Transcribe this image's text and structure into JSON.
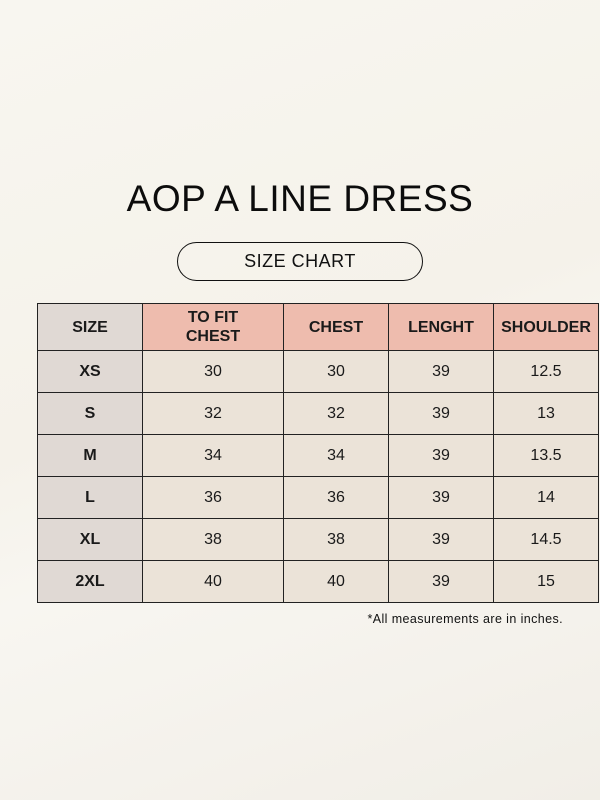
{
  "title": "AOP A LINE DRESS",
  "subtitle": "SIZE CHART",
  "colors": {
    "background": "#f7f5ee",
    "header": "#eebcae",
    "size_column": "#e0d9d4",
    "cell": "#ebe3d8",
    "border": "#222222"
  },
  "chart_data": {
    "type": "table",
    "columns": [
      "SIZE",
      "TO FIT CHEST",
      "CHEST",
      "LENGHT",
      "SHOULDER"
    ],
    "rows": [
      [
        "XS",
        "30",
        "30",
        "39",
        "12.5"
      ],
      [
        "S",
        "32",
        "32",
        "39",
        "13"
      ],
      [
        "M",
        "34",
        "34",
        "39",
        "13.5"
      ],
      [
        "L",
        "36",
        "36",
        "39",
        "14"
      ],
      [
        "XL",
        "38",
        "38",
        "39",
        "14.5"
      ],
      [
        "2XL",
        "40",
        "40",
        "39",
        "15"
      ]
    ]
  },
  "note": "*All measurements are in inches."
}
